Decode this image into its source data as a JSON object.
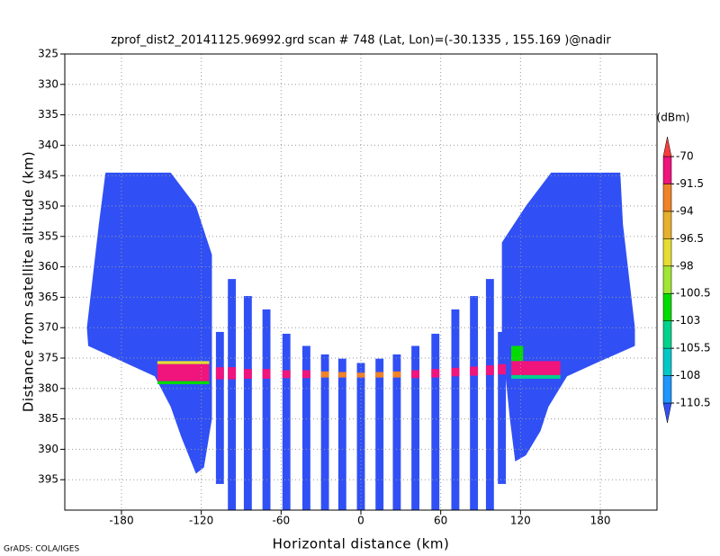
{
  "chart_data": {
    "type": "shaded",
    "title": "zprof_dist2_20141125.96992.grd  scan # 748  (Lat, Lon)=(-30.1335 , 155.169 )@nadir",
    "x_label": "Horizontal distance (km)",
    "y_label": "Distance from satellite altitude (km)",
    "colorbar_label": "(dBm)",
    "footer": "GrADS: COLA/IGES",
    "xlim": [
      -222.6,
      222.6
    ],
    "ylim": [
      325,
      400
    ],
    "y_inverted": true,
    "xticks": [
      -180,
      -120,
      -60,
      0,
      60,
      120,
      180
    ],
    "yticks": [
      325,
      330,
      335,
      340,
      345,
      350,
      355,
      360,
      365,
      370,
      375,
      380,
      385,
      390,
      395
    ],
    "grid": true,
    "levels": [
      -110.5,
      -108,
      -105.5,
      -103,
      -100.5,
      -98,
      -96.5,
      -94,
      -91.5,
      -70
    ],
    "colors": [
      "#3050f5",
      "#1e96ff",
      "#00c8c8",
      "#00d28c",
      "#00dc00",
      "#a0e632",
      "#e6dc32",
      "#e6af2d",
      "#f08228",
      "#f0147d",
      "#fa3c3c"
    ],
    "regions": [
      {
        "value": -112,
        "x": [
          -192,
          -143,
          -124,
          -112,
          -112,
          -112,
          -118,
          -124,
          -135,
          -143,
          -155,
          -175,
          -205,
          -206,
          -197
        ],
        "y": [
          344.5,
          344.5,
          350,
          358,
          370,
          385,
          393,
          394,
          388,
          383,
          378,
          376,
          373,
          370,
          353
        ]
      },
      {
        "value": -112,
        "x": [
          143,
          195,
          197,
          206,
          206,
          175,
          155,
          141,
          135,
          124,
          116,
          112,
          106,
          106,
          124
        ],
        "y": [
          344.5,
          344.5,
          353,
          370,
          373,
          376,
          378,
          383,
          387,
          391,
          392,
          385,
          372,
          356,
          350
        ]
      }
    ],
    "columns": [
      {
        "value": -112,
        "x": [
          -109,
          -103
        ],
        "y": [
          370.7,
          395.7
        ]
      },
      {
        "value": -112,
        "x": [
          -100,
          -94
        ],
        "y": [
          362,
          400
        ]
      },
      {
        "value": -112,
        "x": [
          -88,
          -82
        ],
        "y": [
          364.8,
          400
        ]
      },
      {
        "value": -112,
        "x": [
          -74,
          -68
        ],
        "y": [
          367,
          400
        ]
      },
      {
        "value": -112,
        "x": [
          -59,
          -53
        ],
        "y": [
          371,
          400
        ]
      },
      {
        "value": -112,
        "x": [
          -44,
          -38
        ],
        "y": [
          373,
          400
        ]
      },
      {
        "value": -112,
        "x": [
          -30,
          -24
        ],
        "y": [
          374.4,
          400
        ]
      },
      {
        "value": -112,
        "x": [
          -17,
          -11
        ],
        "y": [
          375.1,
          400
        ]
      },
      {
        "value": -112,
        "x": [
          -3,
          3
        ],
        "y": [
          375.8,
          400
        ]
      },
      {
        "value": -112,
        "x": [
          11,
          17
        ],
        "y": [
          375.1,
          400
        ]
      },
      {
        "value": -112,
        "x": [
          24,
          30
        ],
        "y": [
          374.4,
          400
        ]
      },
      {
        "value": -112,
        "x": [
          38,
          44
        ],
        "y": [
          373,
          400
        ]
      },
      {
        "value": -112,
        "x": [
          53,
          59
        ],
        "y": [
          371,
          400
        ]
      },
      {
        "value": -112,
        "x": [
          68,
          74
        ],
        "y": [
          367,
          400
        ]
      },
      {
        "value": -112,
        "x": [
          82,
          88
        ],
        "y": [
          364.8,
          400
        ]
      },
      {
        "value": -112,
        "x": [
          94,
          100
        ],
        "y": [
          362,
          400
        ]
      },
      {
        "value": -112,
        "x": [
          103,
          109
        ],
        "y": [
          370.7,
          395.7
        ]
      },
      {
        "value": -97,
        "x": [
          -153,
          -114
        ],
        "y": [
          375.5,
          376
        ]
      },
      {
        "value": -80,
        "x": [
          -153,
          -114
        ],
        "y": [
          376,
          378.8
        ]
      },
      {
        "value": -102,
        "x": [
          -153,
          -114
        ],
        "y": [
          378.8,
          379.3
        ]
      },
      {
        "value": -102,
        "x": [
          113,
          122
        ],
        "y": [
          373,
          375.5
        ]
      },
      {
        "value": -80,
        "x": [
          113,
          150
        ],
        "y": [
          375.5,
          377.8
        ]
      },
      {
        "value": -104,
        "x": [
          113,
          150
        ],
        "y": [
          377.8,
          378.4
        ]
      },
      {
        "value": -80,
        "x": [
          -109,
          -103
        ],
        "y": [
          376.5,
          378.5
        ]
      },
      {
        "value": -80,
        "x": [
          -100,
          -94
        ],
        "y": [
          376.5,
          378.5
        ]
      },
      {
        "value": -85,
        "x": [
          -88,
          -82
        ],
        "y": [
          376.8,
          378.4
        ]
      },
      {
        "value": -85,
        "x": [
          -74,
          -68
        ],
        "y": [
          376.8,
          378.4
        ]
      },
      {
        "value": -85,
        "x": [
          -59,
          -53
        ],
        "y": [
          377,
          378.3
        ]
      },
      {
        "value": -85,
        "x": [
          -44,
          -38
        ],
        "y": [
          377,
          378.3
        ]
      },
      {
        "value": -93,
        "x": [
          -30,
          -24
        ],
        "y": [
          377.2,
          378.2
        ]
      },
      {
        "value": -93,
        "x": [
          -17,
          -11
        ],
        "y": [
          377.3,
          378.2
        ]
      },
      {
        "value": -93,
        "x": [
          -3,
          3
        ],
        "y": [
          377.4,
          378.2
        ]
      },
      {
        "value": -93,
        "x": [
          11,
          17
        ],
        "y": [
          377.3,
          378.2
        ]
      },
      {
        "value": -93,
        "x": [
          24,
          30
        ],
        "y": [
          377.2,
          378.2
        ]
      },
      {
        "value": -85,
        "x": [
          38,
          44
        ],
        "y": [
          377,
          378.3
        ]
      },
      {
        "value": -85,
        "x": [
          53,
          59
        ],
        "y": [
          376.8,
          378.2
        ]
      },
      {
        "value": -85,
        "x": [
          68,
          74
        ],
        "y": [
          376.6,
          378
        ]
      },
      {
        "value": -85,
        "x": [
          82,
          88
        ],
        "y": [
          376.4,
          377.9
        ]
      },
      {
        "value": -80,
        "x": [
          94,
          100
        ],
        "y": [
          376.2,
          377.8
        ]
      },
      {
        "value": -80,
        "x": [
          103,
          109
        ],
        "y": [
          376,
          377.7
        ]
      }
    ]
  }
}
